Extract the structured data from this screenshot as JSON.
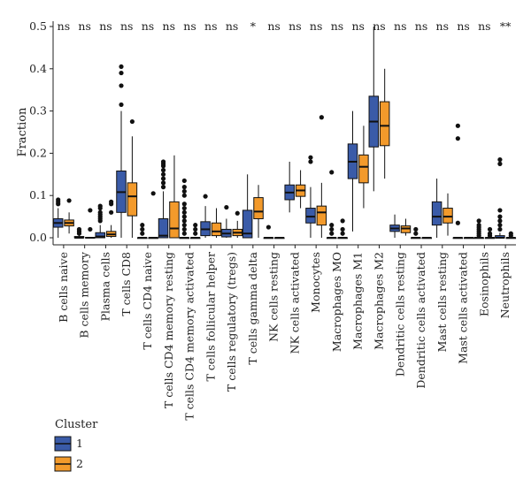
{
  "chart_data": {
    "type": "boxplot",
    "ylabel": "Fraction",
    "ylim": [
      0,
      0.5
    ],
    "yticks": [
      "0.0",
      "0.1",
      "0.2",
      "0.3",
      "0.4",
      "0.5"
    ],
    "legend": {
      "title": "Cluster",
      "position": "bottom-left",
      "entries": [
        {
          "label": "1",
          "color": "#3a5ba8"
        },
        {
          "label": "2",
          "color": "#f39a2b"
        }
      ]
    },
    "categories": [
      {
        "name": "B cells naive",
        "sig": "ns",
        "c1": {
          "q1": 0.025,
          "med": 0.035,
          "q3": 0.045,
          "lo": 0.0,
          "hi": 0.07,
          "out": [
            0.08,
            0.09,
            0.085
          ]
        },
        "c2": {
          "q1": 0.028,
          "med": 0.035,
          "q3": 0.042,
          "lo": 0.01,
          "hi": 0.06,
          "out": [
            0.088
          ]
        }
      },
      {
        "name": "B cells memory",
        "sig": "ns",
        "c1": {
          "q1": 0.0,
          "med": 0.0,
          "q3": 0.003,
          "lo": 0.0,
          "hi": 0.006,
          "out": [
            0.02,
            0.015,
            0.01
          ]
        },
        "c2": {
          "q1": 0.0,
          "med": 0.0,
          "q3": 0.001,
          "lo": 0.0,
          "hi": 0.002,
          "out": [
            0.065,
            0.02
          ]
        }
      },
      {
        "name": "Plasma cells",
        "sig": "ns",
        "c1": {
          "q1": 0.0,
          "med": 0.003,
          "q3": 0.012,
          "lo": 0.0,
          "hi": 0.03,
          "out": [
            0.04,
            0.05,
            0.06,
            0.07,
            0.075,
            0.045,
            0.055
          ]
        },
        "c2": {
          "q1": 0.003,
          "med": 0.008,
          "q3": 0.015,
          "lo": 0.0,
          "hi": 0.03,
          "out": [
            0.06,
            0.08,
            0.085
          ]
        }
      },
      {
        "name": "T cells CD8",
        "sig": "ns",
        "c1": {
          "q1": 0.06,
          "med": 0.108,
          "q3": 0.158,
          "lo": 0.0,
          "hi": 0.3,
          "out": [
            0.315,
            0.36,
            0.39,
            0.405
          ]
        },
        "c2": {
          "q1": 0.052,
          "med": 0.098,
          "q3": 0.13,
          "lo": 0.0,
          "hi": 0.24,
          "out": [
            0.275
          ]
        }
      },
      {
        "name": "T cells CD4 naive",
        "sig": "ns",
        "c1": {
          "q1": 0.0,
          "med": 0.0,
          "q3": 0.0,
          "lo": 0.0,
          "hi": 0.0,
          "out": [
            0.01,
            0.02,
            0.03
          ]
        },
        "c2": {
          "q1": 0.0,
          "med": 0.0,
          "q3": 0.0,
          "lo": 0.0,
          "hi": 0.0,
          "out": [
            0.105
          ]
        }
      },
      {
        "name": "T cells CD4 memory resting",
        "sig": "ns",
        "c1": {
          "q1": 0.0,
          "med": 0.005,
          "q3": 0.045,
          "lo": 0.0,
          "hi": 0.11,
          "out": [
            0.12,
            0.13,
            0.14,
            0.15,
            0.16,
            0.17,
            0.175,
            0.18
          ]
        },
        "c2": {
          "q1": 0.0,
          "med": 0.022,
          "q3": 0.085,
          "lo": 0.0,
          "hi": 0.195,
          "out": []
        }
      },
      {
        "name": "T cells CD4 memory activated",
        "sig": "ns",
        "c1": {
          "q1": 0.0,
          "med": 0.0,
          "q3": 0.0,
          "lo": 0.0,
          "hi": 0.0,
          "out": [
            0.01,
            0.02,
            0.03,
            0.04,
            0.05,
            0.06,
            0.07,
            0.08,
            0.1,
            0.11,
            0.12,
            0.135
          ]
        },
        "c2": {
          "q1": 0.0,
          "med": 0.0,
          "q3": 0.0,
          "lo": 0.0,
          "hi": 0.0,
          "out": [
            0.01,
            0.02,
            0.03
          ]
        }
      },
      {
        "name": "T cells follicular helper",
        "sig": "ns",
        "c1": {
          "q1": 0.005,
          "med": 0.02,
          "q3": 0.038,
          "lo": 0.0,
          "hi": 0.075,
          "out": [
            0.098
          ]
        },
        "c2": {
          "q1": 0.005,
          "med": 0.015,
          "q3": 0.035,
          "lo": 0.0,
          "hi": 0.07,
          "out": []
        }
      },
      {
        "name": "T cells regulatory (tregs)",
        "sig": "ns",
        "c1": {
          "q1": 0.002,
          "med": 0.01,
          "q3": 0.02,
          "lo": 0.0,
          "hi": 0.045,
          "out": [
            0.072
          ]
        },
        "c2": {
          "q1": 0.005,
          "med": 0.012,
          "q3": 0.02,
          "lo": 0.0,
          "hi": 0.04,
          "out": [
            0.058
          ]
        }
      },
      {
        "name": "T cells gamma delta",
        "sig": "*",
        "c1": {
          "q1": 0.0,
          "med": 0.01,
          "q3": 0.065,
          "lo": 0.0,
          "hi": 0.15,
          "out": []
        },
        "c2": {
          "q1": 0.045,
          "med": 0.062,
          "q3": 0.095,
          "lo": 0.0,
          "hi": 0.125,
          "out": []
        }
      },
      {
        "name": "NK cells resting",
        "sig": "ns",
        "c1": {
          "q1": 0.0,
          "med": 0.0,
          "q3": 0.0,
          "lo": 0.0,
          "hi": 0.0,
          "out": [
            0.025
          ]
        },
        "c2": {
          "q1": 0.0,
          "med": 0.0,
          "q3": 0.0,
          "lo": 0.0,
          "hi": 0.0,
          "out": []
        }
      },
      {
        "name": "NK cells activated",
        "sig": "ns",
        "c1": {
          "q1": 0.09,
          "med": 0.107,
          "q3": 0.125,
          "lo": 0.06,
          "hi": 0.18,
          "out": []
        },
        "c2": {
          "q1": 0.098,
          "med": 0.112,
          "q3": 0.125,
          "lo": 0.07,
          "hi": 0.16,
          "out": []
        }
      },
      {
        "name": "Monocytes",
        "sig": "ns",
        "c1": {
          "q1": 0.035,
          "med": 0.05,
          "q3": 0.07,
          "lo": 0.0,
          "hi": 0.12,
          "out": [
            0.18,
            0.19
          ]
        },
        "c2": {
          "q1": 0.03,
          "med": 0.06,
          "q3": 0.075,
          "lo": 0.0,
          "hi": 0.13,
          "out": [
            0.285
          ]
        }
      },
      {
        "name": "Macrophages MO",
        "sig": "ns",
        "c1": {
          "q1": 0.0,
          "med": 0.0,
          "q3": 0.0,
          "lo": 0.0,
          "hi": 0.0,
          "out": [
            0.01,
            0.02,
            0.03,
            0.155
          ]
        },
        "c2": {
          "q1": 0.0,
          "med": 0.0,
          "q3": 0.0,
          "lo": 0.0,
          "hi": 0.0,
          "out": [
            0.01,
            0.02,
            0.04
          ]
        }
      },
      {
        "name": "Macrophages M1",
        "sig": "ns",
        "c1": {
          "q1": 0.14,
          "med": 0.18,
          "q3": 0.222,
          "lo": 0.015,
          "hi": 0.3,
          "out": []
        },
        "c2": {
          "q1": 0.13,
          "med": 0.168,
          "q3": 0.196,
          "lo": 0.07,
          "hi": 0.265,
          "out": []
        }
      },
      {
        "name": "Macrophages M2",
        "sig": "ns",
        "c1": {
          "q1": 0.215,
          "med": 0.275,
          "q3": 0.335,
          "lo": 0.11,
          "hi": 0.5,
          "out": []
        },
        "c2": {
          "q1": 0.218,
          "med": 0.265,
          "q3": 0.322,
          "lo": 0.14,
          "hi": 0.4,
          "out": []
        }
      },
      {
        "name": "Dendritic cells resting",
        "sig": "ns",
        "c1": {
          "q1": 0.015,
          "med": 0.022,
          "q3": 0.03,
          "lo": 0.0,
          "hi": 0.055,
          "out": []
        },
        "c2": {
          "q1": 0.012,
          "med": 0.022,
          "q3": 0.028,
          "lo": 0.005,
          "hi": 0.045,
          "out": []
        }
      },
      {
        "name": "Dendritic cells activated",
        "sig": "ns",
        "c1": {
          "q1": 0.0,
          "med": 0.0,
          "q3": 0.0,
          "lo": 0.0,
          "hi": 0.0,
          "out": [
            0.01,
            0.02
          ]
        },
        "c2": {
          "q1": 0.0,
          "med": 0.0,
          "q3": 0.0,
          "lo": 0.0,
          "hi": 0.0,
          "out": []
        }
      },
      {
        "name": "Mast cells resting",
        "sig": "ns",
        "c1": {
          "q1": 0.03,
          "med": 0.05,
          "q3": 0.085,
          "lo": 0.0,
          "hi": 0.14,
          "out": []
        },
        "c2": {
          "q1": 0.035,
          "med": 0.05,
          "q3": 0.07,
          "lo": 0.005,
          "hi": 0.105,
          "out": []
        }
      },
      {
        "name": "Mast cells activated",
        "sig": "ns",
        "c1": {
          "q1": 0.0,
          "med": 0.0,
          "q3": 0.0,
          "lo": 0.0,
          "hi": 0.0,
          "out": [
            0.035,
            0.235,
            0.265
          ]
        },
        "c2": {
          "q1": 0.0,
          "med": 0.0,
          "q3": 0.0,
          "lo": 0.0,
          "hi": 0.0,
          "out": []
        }
      },
      {
        "name": "Eosinophils",
        "sig": "ns",
        "c1": {
          "q1": 0.0,
          "med": 0.0,
          "q3": 0.0,
          "lo": 0.0,
          "hi": 0.0,
          "out": [
            0.005,
            0.01,
            0.015,
            0.02,
            0.025,
            0.03,
            0.04
          ]
        },
        "c2": {
          "q1": 0.0,
          "med": 0.0,
          "q3": 0.0,
          "lo": 0.0,
          "hi": 0.0,
          "out": [
            0.005,
            0.01,
            0.02
          ]
        }
      },
      {
        "name": "Neutrophils",
        "sig": "**",
        "c1": {
          "q1": 0.0,
          "med": 0.0,
          "q3": 0.005,
          "lo": 0.0,
          "hi": 0.012,
          "out": [
            0.02,
            0.03,
            0.04,
            0.05,
            0.065,
            0.175,
            0.185
          ]
        },
        "c2": {
          "q1": 0.0,
          "med": 0.0,
          "q3": 0.0,
          "lo": 0.0,
          "hi": 0.0,
          "out": [
            0.005,
            0.01
          ]
        }
      }
    ]
  }
}
